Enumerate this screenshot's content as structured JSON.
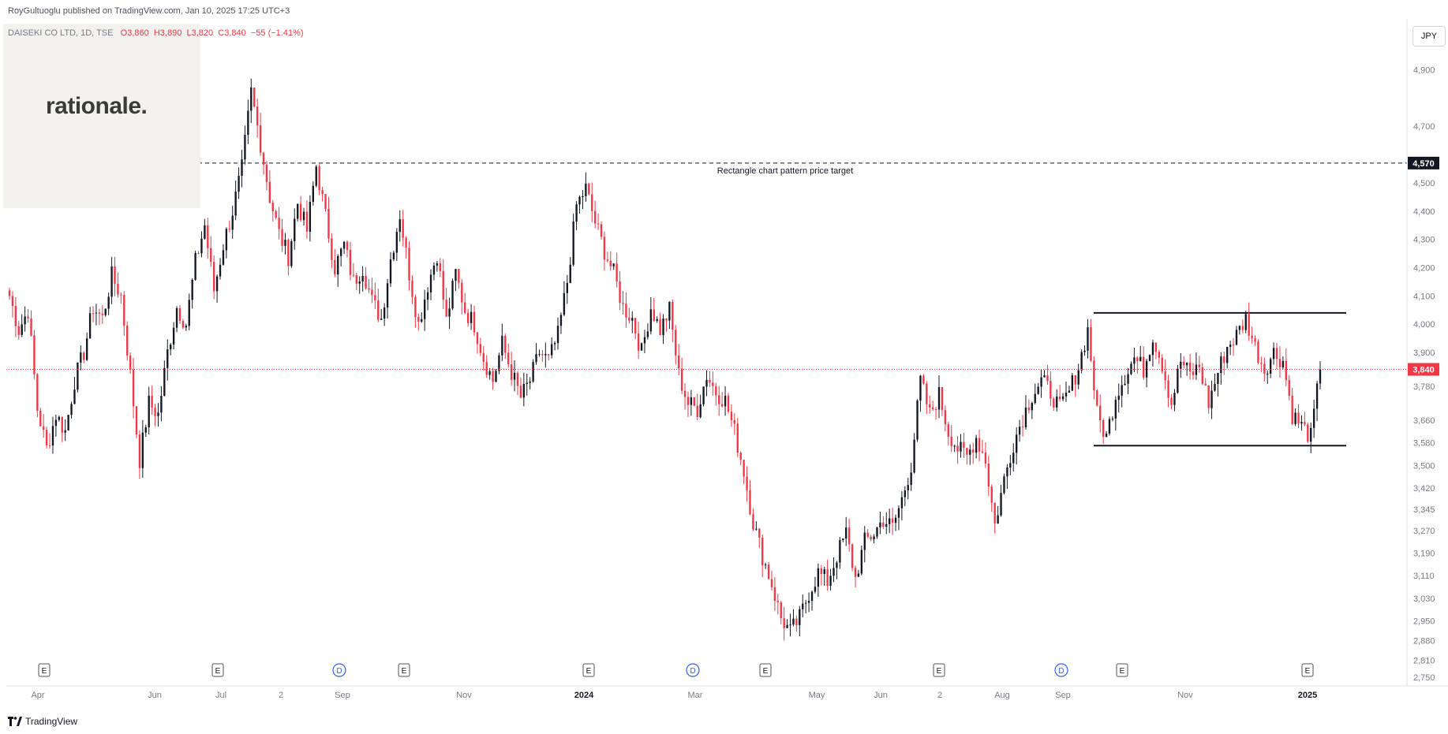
{
  "header": {
    "published": "RoyGultuoglu published on TradingView.com, Jan 10, 2025 17:25 UTC+3"
  },
  "symbol": {
    "name": "DAISEKI CO LTD, 1D, TSE",
    "open": "O3,860",
    "high": "H3,890",
    "low": "L3,820",
    "close": "C3,840",
    "change": "−55 (−1.41%)"
  },
  "logo": {
    "text": "rationale."
  },
  "currency": "JPY",
  "footer": {
    "brand": "TradingView"
  },
  "colors": {
    "up": "#131722",
    "down": "#f23645",
    "grid": "#f0f3fa",
    "axis": "#787b86"
  },
  "chart_data": {
    "type": "candlestick",
    "ylim": [
      2720,
      5080
    ],
    "yticks": [
      2750,
      2810,
      2880,
      2950,
      3030,
      3110,
      3190,
      3270,
      3345,
      3420,
      3500,
      3580,
      3660,
      3780,
      3900,
      4000,
      4100,
      4200,
      4300,
      4400,
      4500,
      4700,
      4900
    ],
    "ytick_labels": [
      "2,750",
      "2,810",
      "2,880",
      "2,950",
      "3,030",
      "3,110",
      "3,190",
      "3,270",
      "3,345",
      "3,420",
      "3,500",
      "3,580",
      "3,660",
      "3,780",
      "3,900",
      "4,000",
      "4,100",
      "4,200",
      "4,300",
      "4,400",
      "4,500",
      "4,700",
      "4,900"
    ],
    "xticks": [
      {
        "label": "Apr",
        "bold": false
      },
      {
        "label": "Jun",
        "bold": false
      },
      {
        "label": "Jul",
        "bold": false
      },
      {
        "label": "2",
        "bold": false
      },
      {
        "label": "Sep",
        "bold": false
      },
      {
        "label": "Nov",
        "bold": false
      },
      {
        "label": "2024",
        "bold": true
      },
      {
        "label": "Mar",
        "bold": false
      },
      {
        "label": "May",
        "bold": false
      },
      {
        "label": "Jun",
        "bold": false
      },
      {
        "label": "2",
        "bold": false
      },
      {
        "label": "Aug",
        "bold": false
      },
      {
        "label": "Sep",
        "bold": false
      },
      {
        "label": "Nov",
        "bold": false
      },
      {
        "label": "2025",
        "bold": true
      }
    ],
    "events": [
      "E",
      "E",
      "D",
      "E",
      "E",
      "D",
      "E",
      "E",
      "D",
      "E",
      "E"
    ],
    "last_price": 3840,
    "last_price_label": "3,840",
    "target_price": 4570,
    "target_price_label": "4,570",
    "target_annotation": "Rectangle chart pattern price target",
    "rectangle": {
      "top": 4040,
      "bottom": 3570
    },
    "anchors": [
      4100,
      3980,
      4050,
      3700,
      3560,
      3680,
      3620,
      3800,
      3900,
      4060,
      4020,
      4170,
      4100,
      3820,
      3520,
      3720,
      3680,
      3900,
      4060,
      4000,
      4220,
      4350,
      4120,
      4280,
      4400,
      4550,
      4820,
      4640,
      4450,
      4320,
      4240,
      4430,
      4330,
      4560,
      4380,
      4200,
      4280,
      4150,
      4200,
      4080,
      4020,
      4230,
      4390,
      4180,
      4000,
      4140,
      4250,
      4010,
      4180,
      4050,
      4000,
      3880,
      3800,
      3930,
      3830,
      3740,
      3800,
      3900,
      3870,
      3960,
      4150,
      4420,
      4480,
      4360,
      4260,
      4180,
      4060,
      4020,
      3900,
      4060,
      3980,
      4050,
      3820,
      3720,
      3700,
      3820,
      3760,
      3730,
      3620,
      3480,
      3300,
      3180,
      3080,
      2960,
      2910,
      2960,
      3050,
      3120,
      3090,
      3180,
      3260,
      3100,
      3230,
      3260,
      3310,
      3280,
      3380,
      3500,
      3800,
      3680,
      3750,
      3620,
      3560,
      3530,
      3600,
      3520,
      3290,
      3450,
      3580,
      3670,
      3750,
      3800,
      3760,
      3700,
      3760,
      3850,
      3980,
      3680,
      3600,
      3750,
      3820,
      3880,
      3840,
      3960,
      3860,
      3720,
      3870,
      3820,
      3850,
      3720,
      3830,
      3920,
      3960,
      4020,
      3920,
      3840,
      3900,
      3870,
      3680,
      3640,
      3600,
      3840
    ]
  }
}
